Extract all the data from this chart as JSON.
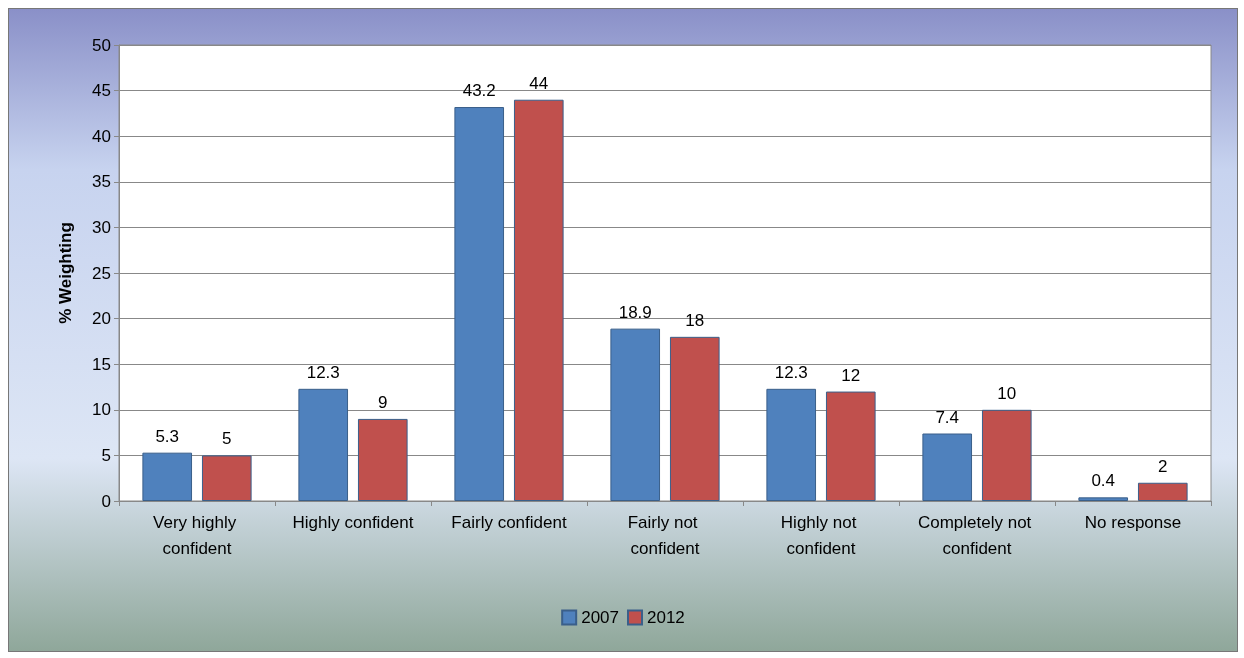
{
  "chart_data": {
    "type": "bar",
    "ylabel": "% Weighting",
    "categories": [
      "Very highly confident",
      "Highly confident",
      "Fairly confident",
      "Fairly not confident",
      "Highly not confident",
      "Completely not confident",
      "No response"
    ],
    "series": [
      {
        "name": "2007",
        "color": "#4f81bd",
        "values": [
          5.3,
          12.3,
          43.2,
          18.9,
          12.3,
          7.4,
          0.4
        ]
      },
      {
        "name": "2012",
        "color": "#c0504d",
        "values": [
          5,
          9,
          44,
          18,
          12,
          10,
          2
        ]
      }
    ],
    "ylim": [
      0,
      50
    ],
    "yticks": [
      0,
      5,
      10,
      15,
      20,
      25,
      30,
      35,
      40,
      45,
      50
    ],
    "grid": "y",
    "legend": "bottom",
    "data_labels": true
  }
}
